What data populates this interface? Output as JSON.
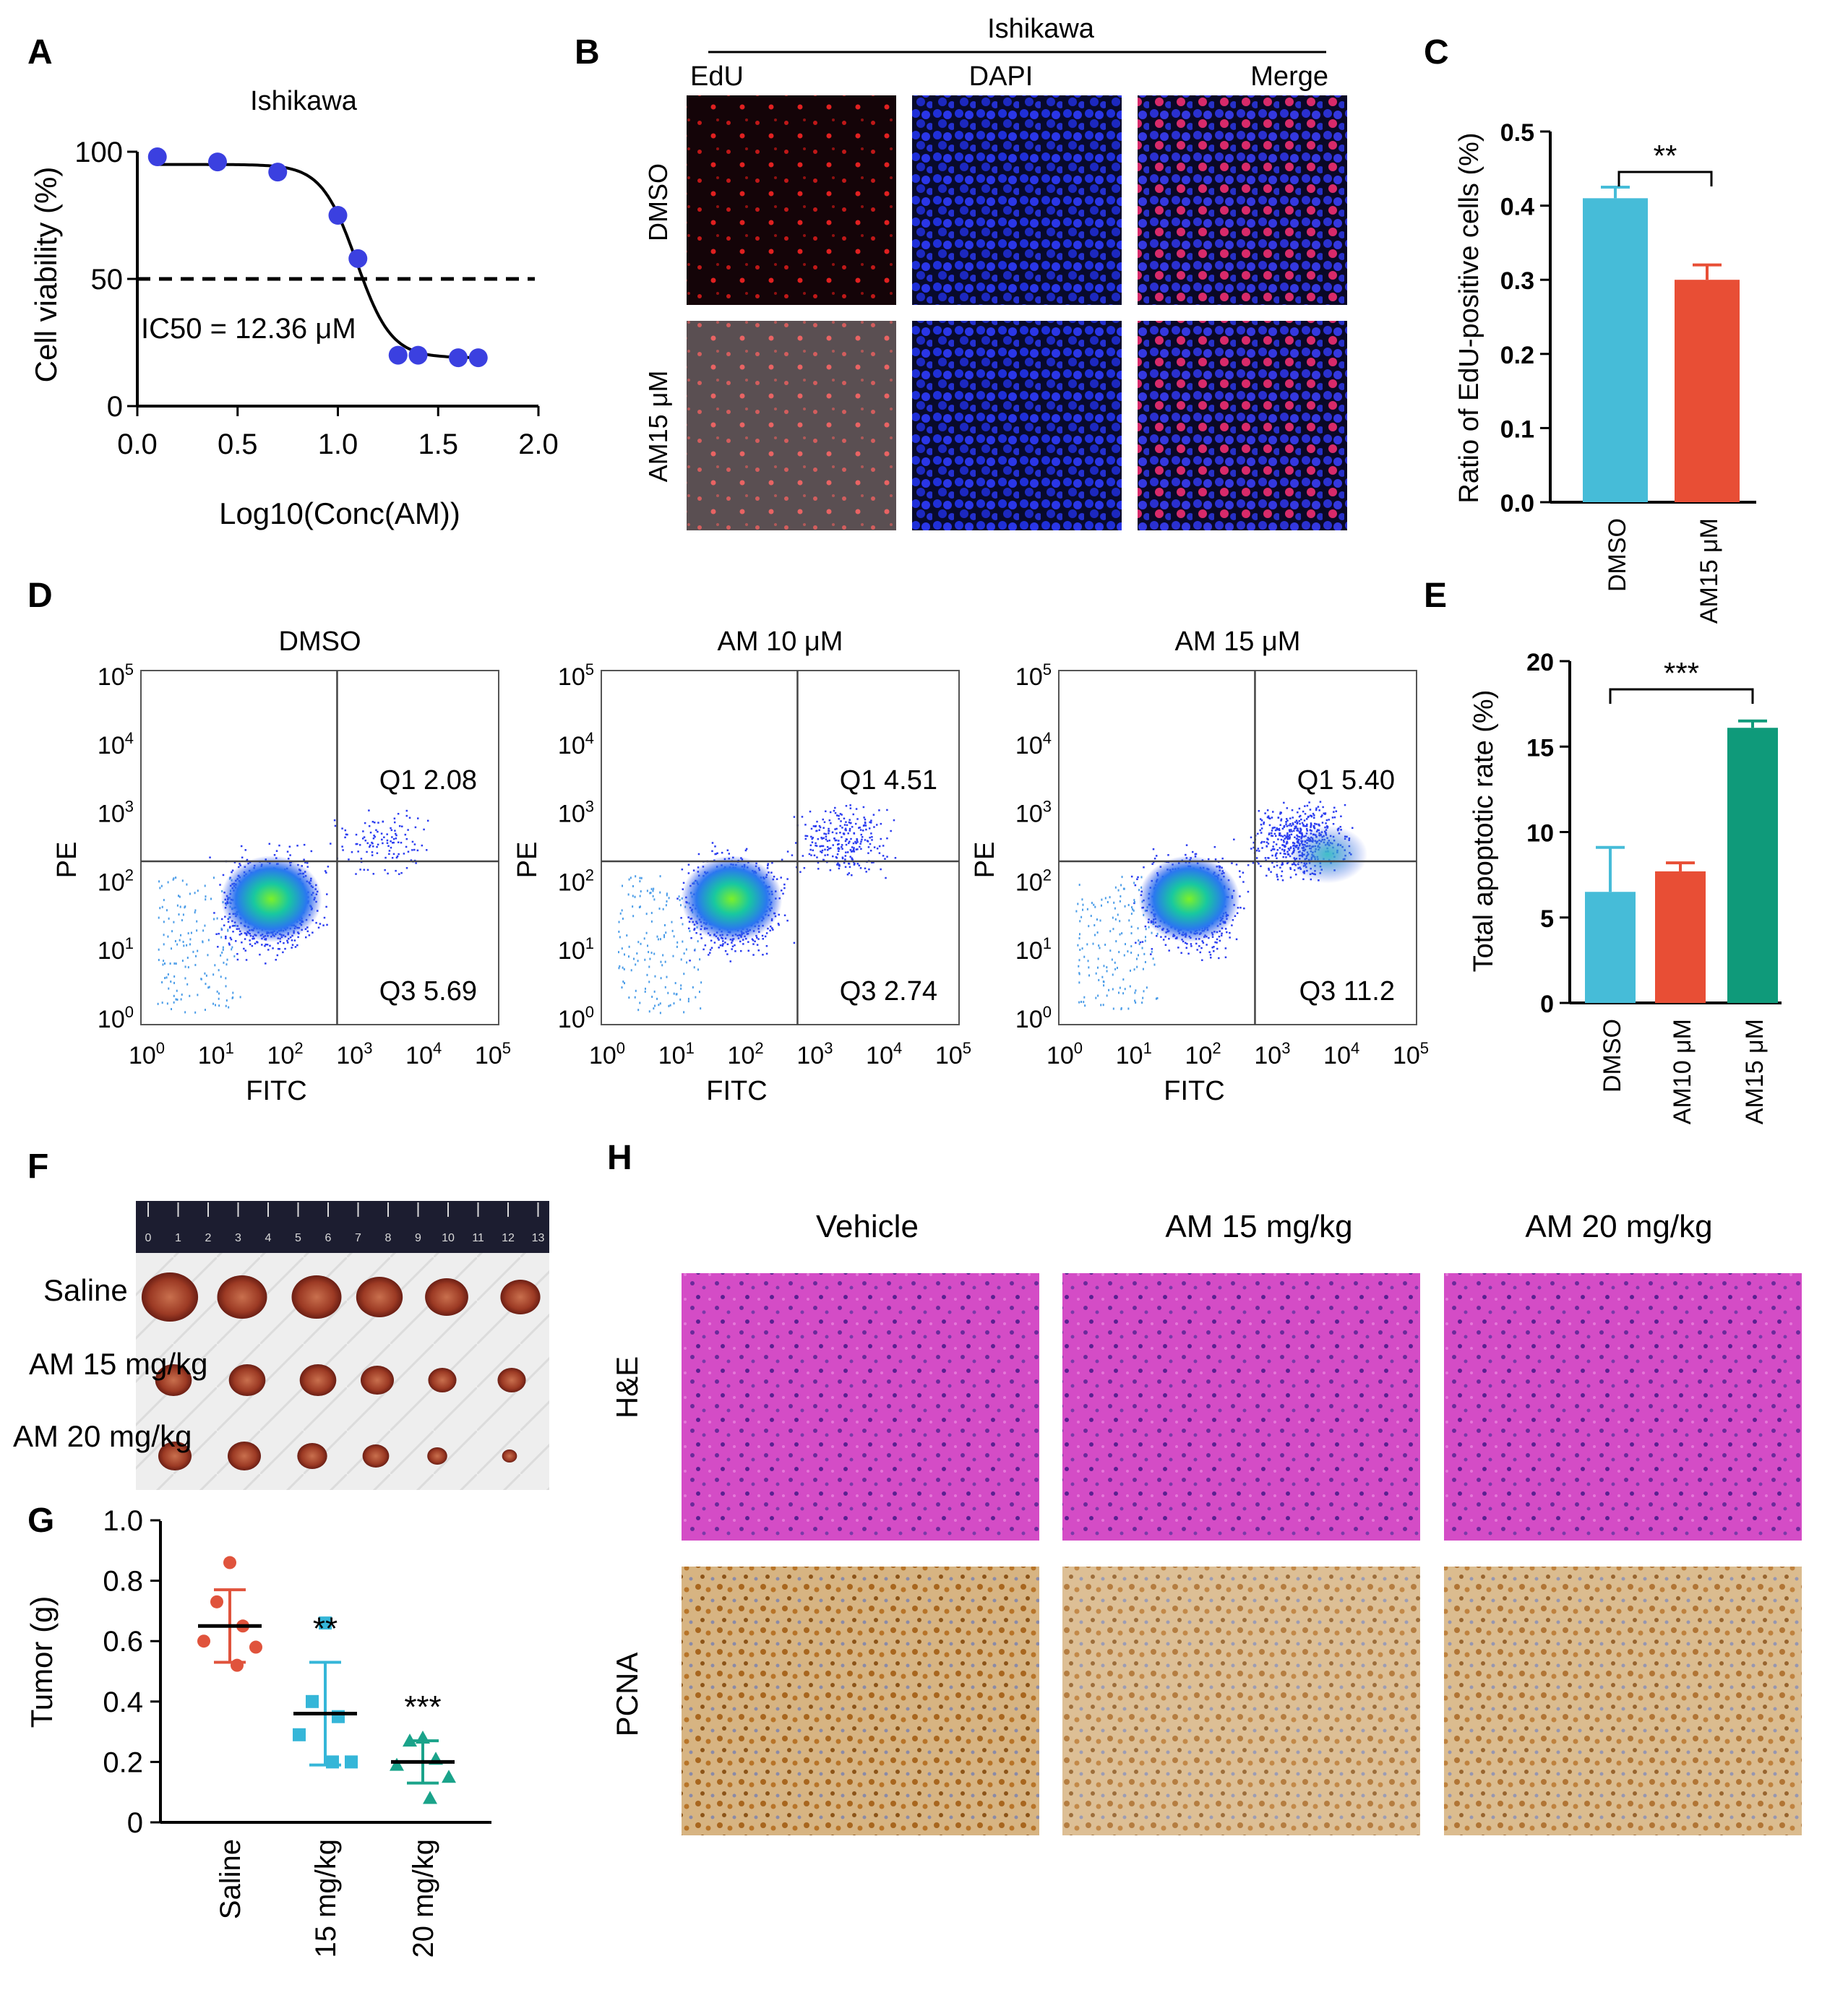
{
  "panel_letters": [
    "A",
    "B",
    "C",
    "D",
    "E",
    "F",
    "G",
    "H"
  ],
  "colors": {
    "blue_point": "#3b40e0",
    "bar_dmso": "#46bcd8",
    "bar_am10": "#e84e35",
    "bar_am15": "#0f9a7a",
    "saline": "#e0533c",
    "dose15": "#35b6d8",
    "dose20": "#1aa38a",
    "he_bg": "#d450c8",
    "pcna_bg": "#c89848"
  },
  "panelB": {
    "cell_line": "Ishikawa",
    "columns": [
      "EdU",
      "DAPI",
      "Merge"
    ],
    "rows": [
      "DMSO",
      "AM15 μM"
    ]
  },
  "panelD": {
    "plots": [
      {
        "title": "DMSO",
        "q1": "Q1 2.08",
        "q3": "Q3 5.69"
      },
      {
        "title": "AM 10 μM",
        "q1": "Q1 4.51",
        "q3": "Q3 2.74"
      },
      {
        "title": "AM 15 μM",
        "q1": "Q1 5.40",
        "q3": "Q3 11.2"
      }
    ],
    "xlabel": "FITC",
    "ylabel": "PE",
    "tick_base": "10",
    "tick_exponents": [
      "0",
      "1",
      "2",
      "3",
      "4",
      "5"
    ]
  },
  "panelF": {
    "ruler_numbers": [
      "0",
      "1",
      "2",
      "3",
      "4",
      "5",
      "6",
      "7",
      "8",
      "9",
      "10",
      "11",
      "12",
      "13"
    ],
    "group_labels": [
      "Saline",
      "AM 15 mg/kg",
      "AM 20 mg/kg"
    ]
  },
  "panelH": {
    "columns": [
      "Vehicle",
      "AM 15 mg/kg",
      "AM 20 mg/kg"
    ],
    "rows": [
      "H&E",
      "PCNA"
    ]
  },
  "chart_data": [
    {
      "panel": "A",
      "type": "scatter",
      "title": "Ishikawa",
      "xlabel": "Log10(Conc(AM))",
      "ylabel": "Cell viability (%)",
      "xlim": [
        0,
        2
      ],
      "ylim": [
        0,
        100
      ],
      "xticks": [
        "0.0",
        "0.5",
        "1.0",
        "1.5",
        "2.0"
      ],
      "yticks": [
        "0",
        "50",
        "100"
      ],
      "x": [
        0.1,
        0.4,
        0.7,
        1.0,
        1.1,
        1.3,
        1.4,
        1.6,
        1.7
      ],
      "y": [
        98,
        96,
        92,
        75,
        58,
        20,
        20,
        19,
        19
      ],
      "fit_curve": {
        "top": 95,
        "bottom": 19,
        "log_ic50": 1.092,
        "hill": -5
      },
      "reference_line": {
        "y": 50,
        "style": "dashed"
      },
      "annotation": "IC50 = 12.36 μM"
    },
    {
      "panel": "C",
      "type": "bar",
      "categories": [
        "DMSO",
        "AM15 μM"
      ],
      "values": [
        0.41,
        0.3
      ],
      "errors": [
        0.015,
        0.02
      ],
      "ylabel": "Ratio of EdU-positive cells (%)",
      "ylim": [
        0,
        0.5
      ],
      "yticks": [
        "0.0",
        "0.1",
        "0.2",
        "0.3",
        "0.4",
        "0.5"
      ],
      "significance": "**"
    },
    {
      "panel": "E",
      "type": "bar",
      "categories": [
        "DMSO",
        "AM10 μM",
        "AM15 μM"
      ],
      "values": [
        6.5,
        7.7,
        16.1
      ],
      "errors": [
        2.6,
        0.5,
        0.4
      ],
      "ylabel": "Total apoptotic rate (%)",
      "ylim": [
        0,
        20
      ],
      "yticks": [
        "0",
        "5",
        "10",
        "15",
        "20"
      ],
      "significance": "***"
    },
    {
      "panel": "G",
      "type": "scatter",
      "categories": [
        "Saline",
        "15 mg/kg",
        "20 mg/kg"
      ],
      "ylabel": "Tumor (g)",
      "ylim": [
        0,
        1.0
      ],
      "yticks": [
        "0",
        "0.2",
        "0.4",
        "0.6",
        "0.8",
        "1.0"
      ],
      "series": [
        {
          "name": "Saline",
          "values": [
            0.86,
            0.73,
            0.65,
            0.6,
            0.58,
            0.52
          ],
          "mean": 0.65,
          "sd": 0.12
        },
        {
          "name": "15 mg/kg",
          "values": [
            0.66,
            0.4,
            0.35,
            0.29,
            0.2,
            0.2
          ],
          "mean": 0.36,
          "sd": 0.17
        },
        {
          "name": "20 mg/kg",
          "values": [
            0.28,
            0.27,
            0.21,
            0.19,
            0.15,
            0.08
          ],
          "mean": 0.2,
          "sd": 0.07
        }
      ],
      "significance": [
        "",
        "**",
        "***"
      ]
    }
  ]
}
